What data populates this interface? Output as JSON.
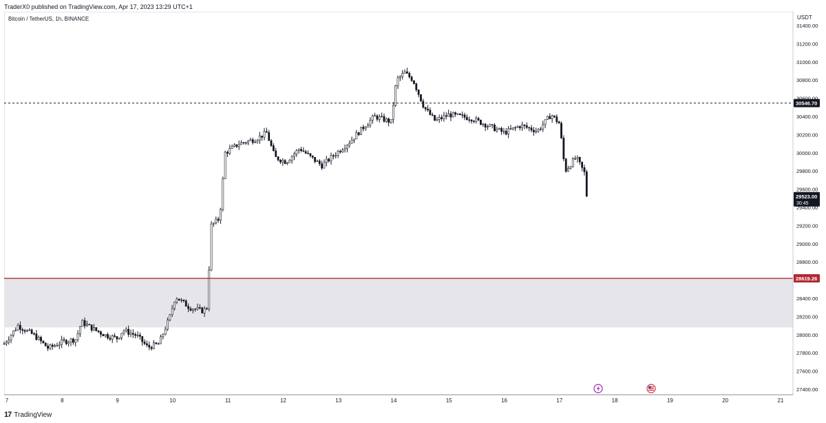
{
  "header": {
    "published_by": "TraderX0 published on TradingView.com, Apr 17, 2023 13:29 UTC+1",
    "symbol": "Bitcoin / TetherUS, 1h, BINANCE"
  },
  "footer": {
    "brand": "TradingView",
    "logo": "tradingview-logo-icon"
  },
  "colors": {
    "candle": "#131722",
    "resistance": "#131722",
    "support": "#b22833",
    "zone": "#e6e6ea",
    "axis_text": "#131722"
  },
  "chart_data": {
    "type": "candlestick",
    "currency_label": "USDT",
    "y_ticks": [
      31400,
      31200,
      31000,
      30800,
      30600,
      30400,
      30200,
      30000,
      29800,
      29600,
      29400,
      29200,
      29000,
      28800,
      28600,
      28400,
      28200,
      28000,
      27800,
      27600,
      27400
    ],
    "y_tick_labels": [
      "31400.00",
      "31200.00",
      "31000.00",
      "30800.00",
      "30600.00",
      "30400.00",
      "30200.00",
      "30000.00",
      "29800.00",
      "29600.00",
      "29400.00",
      "29200.00",
      "29000.00",
      "28800.00",
      "28600.00",
      "28400.00",
      "28200.00",
      "28000.00",
      "27800.00",
      "27600.00",
      "27400.00"
    ],
    "ylim": [
      27350,
      31520
    ],
    "x_ticks": [
      "7",
      "8",
      "9",
      "10",
      "11",
      "12",
      "13",
      "14",
      "15",
      "16",
      "17",
      "18",
      "19",
      "20",
      "21"
    ],
    "xlim_days": [
      6.95,
      21.05
    ],
    "horizontal_lines": [
      {
        "price": 30546.7,
        "label": "30546.70",
        "style": "dashed"
      },
      {
        "price": 28619.26,
        "label": "28619.26",
        "style": "solid"
      }
    ],
    "zone": {
      "from": 28080,
      "to": 28619.26
    },
    "last_price": {
      "price": 29523.0,
      "label": "29523.00",
      "countdown": "30:45"
    },
    "anchors": [
      [
        6.95,
        27900
      ],
      [
        7.2,
        28100
      ],
      [
        7.5,
        27990
      ],
      [
        7.75,
        27850
      ],
      [
        8.0,
        27920
      ],
      [
        8.25,
        27950
      ],
      [
        8.35,
        28140
      ],
      [
        8.6,
        28050
      ],
      [
        8.8,
        27990
      ],
      [
        9.0,
        27960
      ],
      [
        9.1,
        28050
      ],
      [
        9.35,
        27990
      ],
      [
        9.55,
        27860
      ],
      [
        9.75,
        27900
      ],
      [
        9.95,
        28200
      ],
      [
        10.05,
        28420
      ],
      [
        10.3,
        28300
      ],
      [
        10.55,
        28260
      ],
      [
        10.62,
        28300
      ],
      [
        10.7,
        29200
      ],
      [
        10.85,
        29280
      ],
      [
        10.95,
        30000
      ],
      [
        11.2,
        30100
      ],
      [
        11.5,
        30150
      ],
      [
        11.7,
        30220
      ],
      [
        11.85,
        29950
      ],
      [
        12.05,
        29900
      ],
      [
        12.3,
        30050
      ],
      [
        12.5,
        29950
      ],
      [
        12.7,
        29860
      ],
      [
        12.95,
        29990
      ],
      [
        13.2,
        30120
      ],
      [
        13.45,
        30280
      ],
      [
        13.65,
        30400
      ],
      [
        13.95,
        30340
      ],
      [
        14.05,
        30800
      ],
      [
        14.2,
        30880
      ],
      [
        14.35,
        30800
      ],
      [
        14.55,
        30500
      ],
      [
        14.75,
        30350
      ],
      [
        15.0,
        30420
      ],
      [
        15.4,
        30380
      ],
      [
        15.7,
        30300
      ],
      [
        16.0,
        30220
      ],
      [
        16.3,
        30300
      ],
      [
        16.6,
        30240
      ],
      [
        16.85,
        30420
      ],
      [
        17.0,
        30320
      ],
      [
        17.1,
        29800
      ],
      [
        17.3,
        29950
      ],
      [
        17.45,
        29780
      ],
      [
        17.5,
        29523
      ]
    ]
  }
}
